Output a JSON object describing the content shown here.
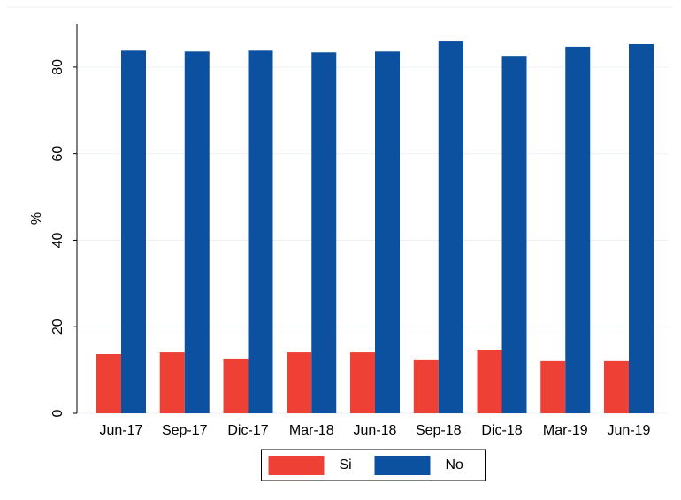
{
  "chart_data": {
    "type": "bar",
    "categories": [
      "Jun-17",
      "Sep-17",
      "Dic-17",
      "Mar-18",
      "Jun-18",
      "Sep-18",
      "Dic-18",
      "Mar-19",
      "Jun-19"
    ],
    "series": [
      {
        "name": "Si",
        "color": "#ee4035",
        "values": [
          13.7,
          14.1,
          12.5,
          14.1,
          14.1,
          12.3,
          14.7,
          12.1,
          12.1
        ]
      },
      {
        "name": "No",
        "color": "#0b51a0",
        "values": [
          83.8,
          83.6,
          83.8,
          83.4,
          83.6,
          86.1,
          82.6,
          84.7,
          85.3
        ]
      }
    ],
    "ylabel": "%",
    "ylim": [
      0,
      90
    ],
    "yticks": [
      0,
      20,
      40,
      60,
      80
    ],
    "grid": true,
    "legend": "bottom"
  }
}
